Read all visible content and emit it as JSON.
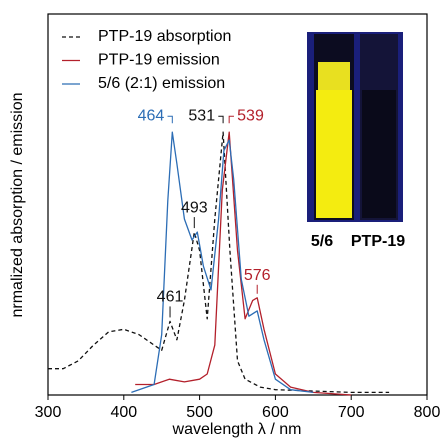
{
  "chart_data": {
    "type": "line",
    "x_label": "wavelength λ / nm",
    "y_label": "nrmalized absorption / emission",
    "xlim": [
      300,
      800
    ],
    "xticks": [
      300,
      400,
      500,
      600,
      700,
      800
    ],
    "ylim": [
      0,
      1.45
    ],
    "series": [
      {
        "name": "PTP-19 absorption",
        "color": "#111111",
        "style": "dashed",
        "x": [
          300,
          320,
          340,
          360,
          380,
          400,
          420,
          440,
          450,
          461,
          470,
          480,
          493,
          500,
          510,
          520,
          531,
          540,
          550,
          560,
          580,
          600,
          700,
          750
        ],
        "values": [
          0.1,
          0.1,
          0.13,
          0.19,
          0.24,
          0.25,
          0.23,
          0.19,
          0.17,
          0.28,
          0.21,
          0.36,
          0.62,
          0.55,
          0.29,
          0.67,
          1.0,
          0.55,
          0.13,
          0.06,
          0.03,
          0.02,
          0.01,
          0.01
        ]
      },
      {
        "name": "PTP-19 emission",
        "color": "#b3202b",
        "style": "solid",
        "x": [
          415,
          440,
          460,
          480,
          500,
          510,
          520,
          530,
          539,
          550,
          560,
          570,
          576,
          585,
          600,
          620,
          650,
          700
        ],
        "values": [
          0.04,
          0.04,
          0.06,
          0.05,
          0.06,
          0.08,
          0.19,
          0.78,
          1.0,
          0.55,
          0.29,
          0.36,
          0.37,
          0.25,
          0.08,
          0.03,
          0.01,
          0.0
        ]
      },
      {
        "name": "5/6 (2:1) emission",
        "color": "#2c6db5",
        "style": "solid",
        "x": [
          410,
          440,
          450,
          458,
          464,
          470,
          480,
          490,
          497,
          505,
          515,
          525,
          532,
          539,
          545,
          555,
          565,
          576,
          585,
          600,
          620,
          650
        ],
        "values": [
          0.01,
          0.04,
          0.23,
          0.74,
          1.0,
          0.88,
          0.67,
          0.59,
          0.62,
          0.49,
          0.4,
          0.67,
          0.93,
          0.97,
          0.82,
          0.44,
          0.3,
          0.32,
          0.21,
          0.06,
          0.02,
          0.01
        ]
      }
    ],
    "peak_labels": [
      {
        "x": 464,
        "series": 2,
        "color": "#2c6db5"
      },
      {
        "x": 531,
        "series": 0,
        "color": "#111111"
      },
      {
        "x": 539,
        "series": 1,
        "color": "#b3202b"
      },
      {
        "x": 493,
        "series": 0,
        "color": "#111111"
      },
      {
        "x": 461,
        "series": 0,
        "color": "#111111"
      },
      {
        "x": 576,
        "series": 1,
        "color": "#b3202b"
      }
    ],
    "inset_labels": [
      "5/6",
      "PTP-19"
    ]
  }
}
